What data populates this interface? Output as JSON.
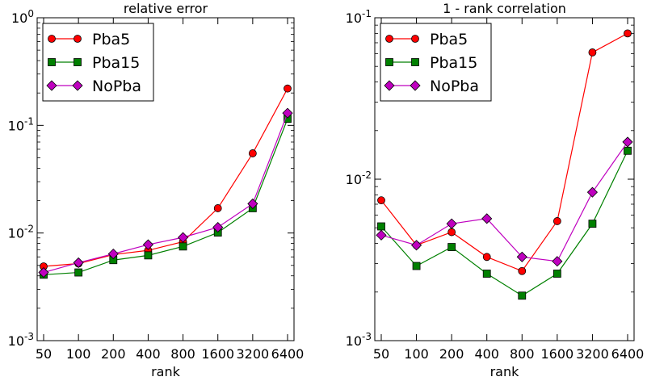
{
  "chart_data": [
    {
      "type": "line",
      "title": "relative error",
      "xlabel": "rank",
      "ylabel": "",
      "yscale": "log",
      "ylim": [
        0.001,
        1
      ],
      "yticks": [
        {
          "value": 1,
          "base": "10",
          "exp": "0"
        },
        {
          "value": 0.1,
          "base": "10",
          "exp": "-1"
        },
        {
          "value": 0.01,
          "base": "10",
          "exp": "-2"
        },
        {
          "value": 0.001,
          "base": "10",
          "exp": "-3"
        }
      ],
      "categories": [
        "50",
        "100",
        "200",
        "400",
        "800",
        "1600",
        "3200",
        "6400"
      ],
      "legend_position": "top-left",
      "series": [
        {
          "name": "Pba5",
          "color": "#ff0000",
          "marker": "circle",
          "values": [
            0.0049,
            0.0052,
            0.0063,
            0.0069,
            0.0083,
            0.017,
            0.055,
            0.22
          ]
        },
        {
          "name": "Pba15",
          "color": "#008000",
          "marker": "square",
          "values": [
            0.0041,
            0.0043,
            0.0056,
            0.0062,
            0.0075,
            0.0101,
            0.017,
            0.115
          ]
        },
        {
          "name": "NoPba",
          "color": "#bf00bf",
          "marker": "diamond",
          "values": [
            0.0043,
            0.0053,
            0.0064,
            0.0078,
            0.0091,
            0.0113,
            0.0187,
            0.13
          ]
        }
      ]
    },
    {
      "type": "line",
      "title": "1 - rank correlation",
      "xlabel": "rank",
      "ylabel": "",
      "yscale": "log",
      "ylim": [
        0.001,
        0.1
      ],
      "yticks": [
        {
          "value": 0.1,
          "base": "10",
          "exp": "-1"
        },
        {
          "value": 0.01,
          "base": "10",
          "exp": "-2"
        },
        {
          "value": 0.001,
          "base": "10",
          "exp": "-3"
        }
      ],
      "categories": [
        "50",
        "100",
        "200",
        "400",
        "800",
        "1600",
        "3200",
        "6400"
      ],
      "legend_position": "top-left",
      "series": [
        {
          "name": "Pba5",
          "color": "#ff0000",
          "marker": "circle",
          "values": [
            0.0074,
            0.0039,
            0.0047,
            0.0033,
            0.0027,
            0.0055,
            0.061,
            0.08
          ]
        },
        {
          "name": "Pba15",
          "color": "#008000",
          "marker": "square",
          "values": [
            0.0051,
            0.0029,
            0.0038,
            0.0026,
            0.0019,
            0.0026,
            0.0053,
            0.015
          ]
        },
        {
          "name": "NoPba",
          "color": "#bf00bf",
          "marker": "diamond",
          "values": [
            0.0045,
            0.0039,
            0.0053,
            0.0057,
            0.0033,
            0.0031,
            0.0083,
            0.017
          ]
        }
      ]
    }
  ]
}
